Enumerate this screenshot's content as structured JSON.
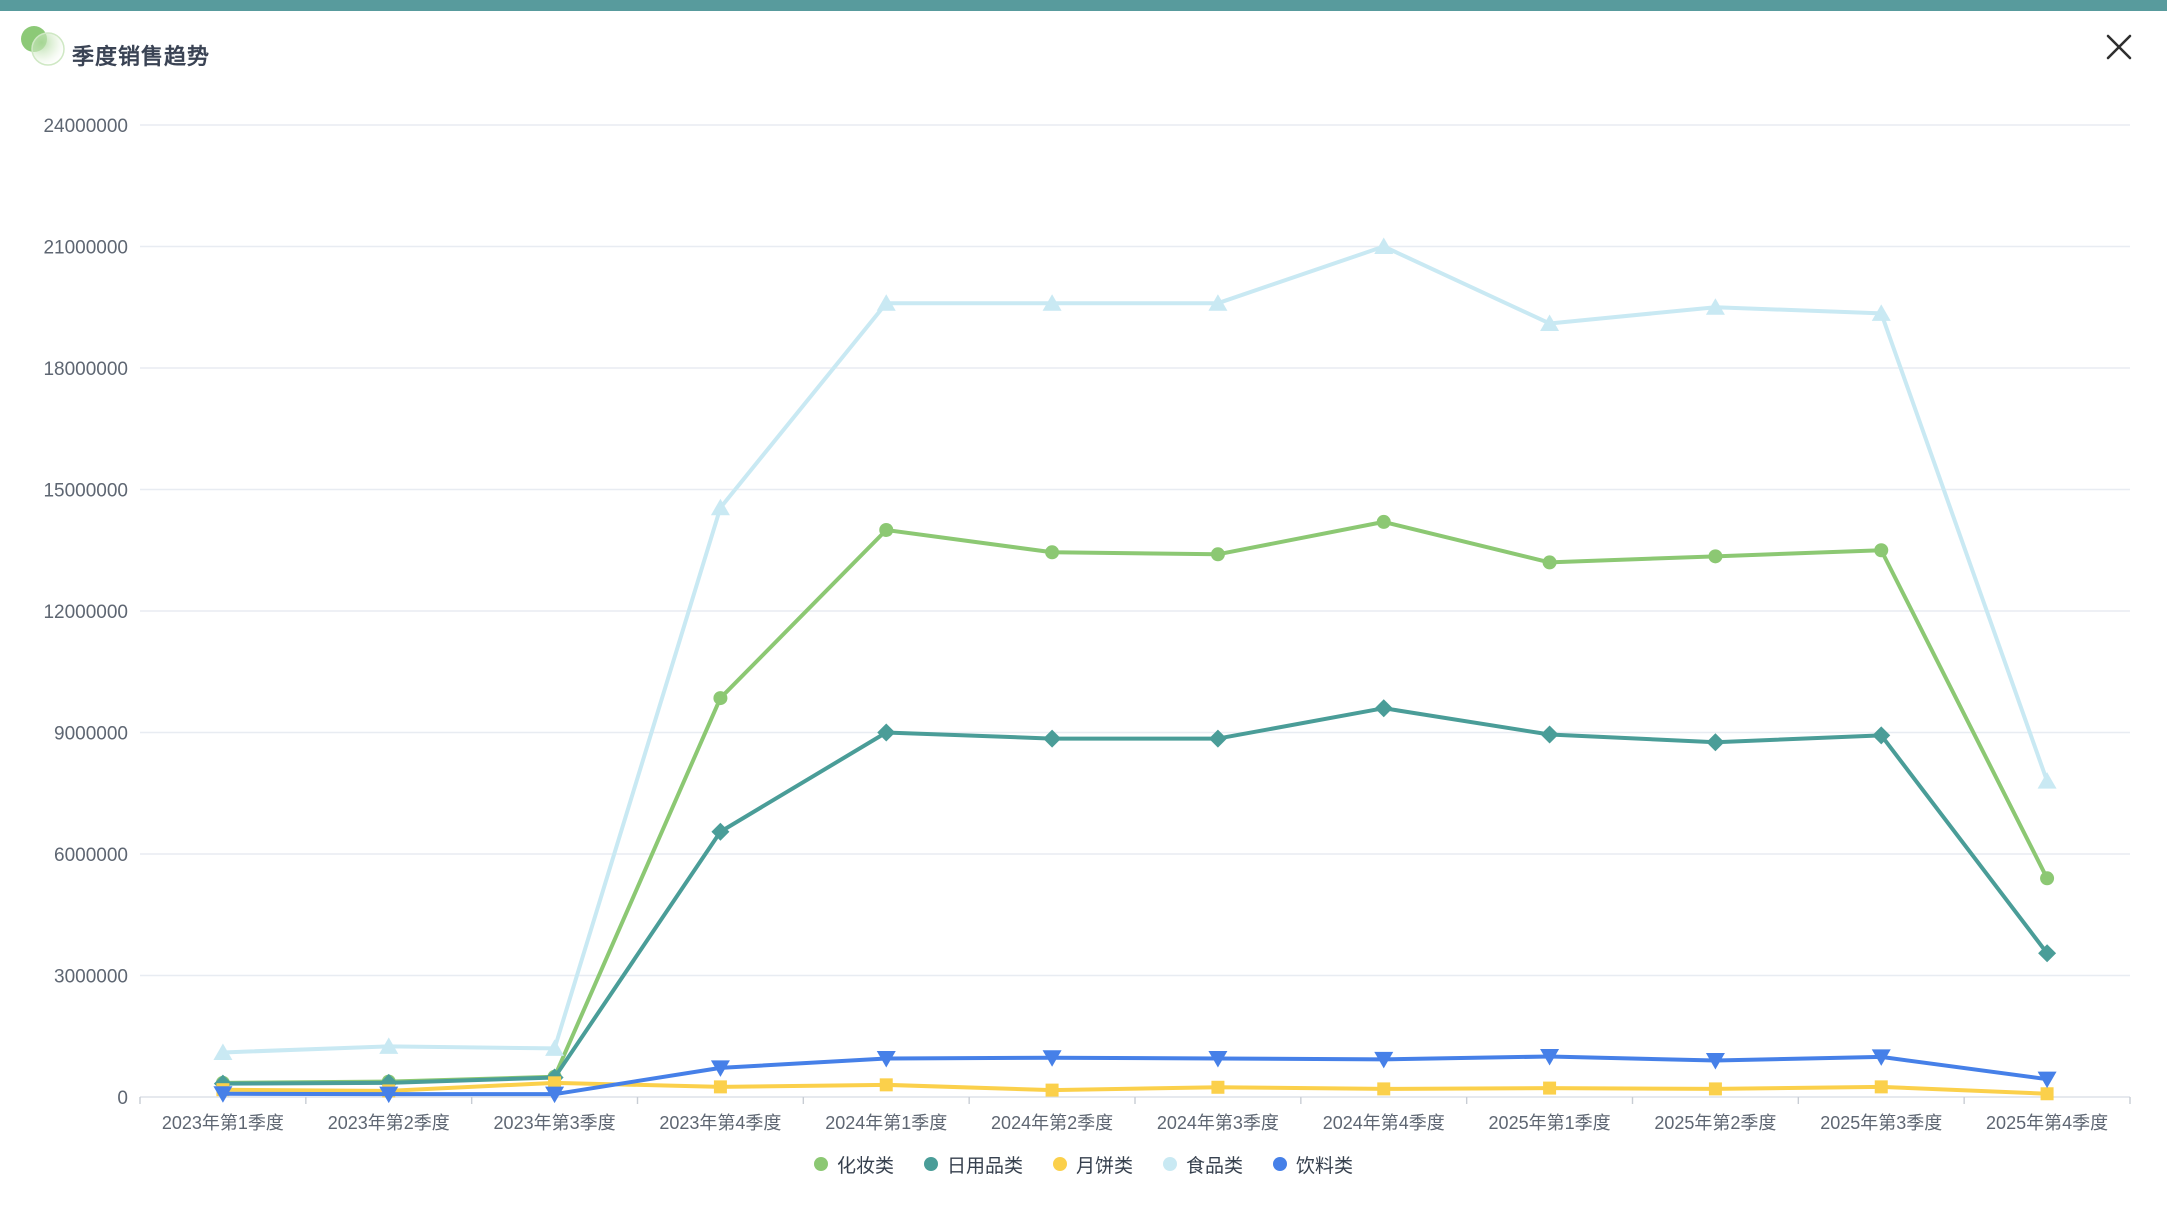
{
  "header": {
    "title": "季度销售趋势"
  },
  "colors": {
    "topbar": "#589b9d",
    "title_text": "#3a4354",
    "close_icon": "#2f2f2f",
    "grid_line": "#e8ecf2",
    "axis_line": "#dde2e8",
    "tick_mark": "#c8cdd4",
    "axis_label": "#5e6672",
    "legend_text": "#36404e",
    "logo_green": "#8cc977",
    "logo_ring": "#cfe8c4"
  },
  "chart_data": {
    "type": "line",
    "title": "季度销售趋势",
    "categories": [
      "2023年第1季度",
      "2023年第2季度",
      "2023年第3季度",
      "2023年第4季度",
      "2024年第1季度",
      "2024年第2季度",
      "2024年第3季度",
      "2024年第4季度",
      "2025年第1季度",
      "2025年第2季度",
      "2025年第3季度",
      "2025年第4季度"
    ],
    "series": [
      {
        "name": "化妆类",
        "color": "#8cc873",
        "marker": "circle",
        "values": [
          350000,
          380000,
          500000,
          9850000,
          14000000,
          13450000,
          13400000,
          14200000,
          13200000,
          13350000,
          13500000,
          5400000
        ]
      },
      {
        "name": "日用品类",
        "color": "#4a9d98",
        "marker": "diamond",
        "values": [
          330000,
          350000,
          480000,
          6550000,
          9000000,
          8850000,
          8850000,
          9600000,
          8950000,
          8760000,
          8930000,
          3550000
        ]
      },
      {
        "name": "月饼类",
        "color": "#fbd04b",
        "marker": "square",
        "values": [
          180000,
          150000,
          350000,
          250000,
          300000,
          170000,
          240000,
          200000,
          220000,
          200000,
          250000,
          80000
        ]
      },
      {
        "name": "食品类",
        "color": "#c9e9f3",
        "marker": "triangle-up",
        "values": [
          1100000,
          1250000,
          1200000,
          14550000,
          19600000,
          19600000,
          19600000,
          21000000,
          19100000,
          19500000,
          19350000,
          7800000
        ]
      },
      {
        "name": "饮料类",
        "color": "#4680e8",
        "marker": "triangle-down",
        "values": [
          80000,
          70000,
          70000,
          720000,
          950000,
          970000,
          950000,
          930000,
          1000000,
          900000,
          990000,
          440000
        ]
      }
    ],
    "y_ticks": [
      0,
      3000000,
      6000000,
      9000000,
      12000000,
      15000000,
      18000000,
      21000000,
      24000000
    ],
    "ylim": [
      0,
      24000000
    ],
    "xlabel": "",
    "ylabel": "",
    "grid": true,
    "legend_position": "bottom"
  }
}
